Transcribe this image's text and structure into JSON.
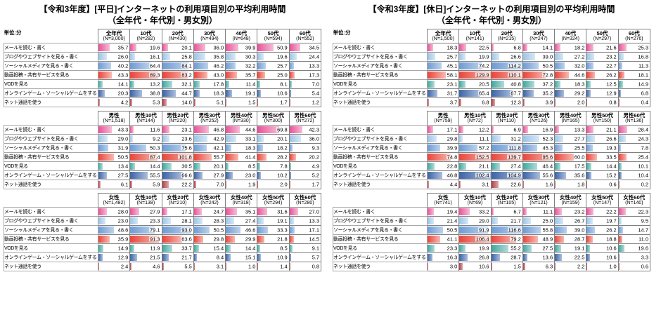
{
  "chart_data": {
    "type": "table",
    "unit_label": "単位:分",
    "bar_full_scale": 100,
    "categories": [
      {
        "label": "メールを読む・書く",
        "color": "#e85298",
        "color_light": "#f7bcd6"
      },
      {
        "label": "ブログやウェブサイトを見る・書く",
        "color": "#9dc3e6",
        "color_light": "#d6e8f7"
      },
      {
        "label": "ソーシャルメディアを見る・書く",
        "color": "#6f9bd2",
        "color_light": "#bcd2ec"
      },
      {
        "label": "動画投稿・共有サービスを見る",
        "color": "#e8453c",
        "color_light": "#f9b9b0"
      },
      {
        "label": "VODを見る",
        "color": "#43a6a0",
        "color_light": "#b0dcd8"
      },
      {
        "label": "オンラインゲーム・ソーシャルゲームをする",
        "color": "#3c64a8",
        "color_light": "#aabede"
      },
      {
        "label": "ネット通話を使う",
        "color": "#b04048",
        "color_light": "#ddaaae"
      }
    ],
    "tables": [
      {
        "title": "【令和3年度】[平日]インターネットの利用項目別の平均利用時間",
        "subtitle": "（全年代・年代別・男女別）",
        "groups": [
          {
            "columns": [
              {
                "label": "全年代",
                "n": "(N=3,000)"
              },
              {
                "label": "10代",
                "n": "(N=282)"
              },
              {
                "label": "20代",
                "n": "(N=430)"
              },
              {
                "label": "30代",
                "n": "(N=494)"
              },
              {
                "label": "40代",
                "n": "(N=648)"
              },
              {
                "label": "50代",
                "n": "(N=594)"
              },
              {
                "label": "60代",
                "n": "(N=552)"
              }
            ],
            "values": [
              [
                35.7,
                19.6,
                20.1,
                36.0,
                39.9,
                50.9,
                34.5
              ],
              [
                26.0,
                16.1,
                25.8,
                35.8,
                30.3,
                19.6,
                24.4
              ],
              [
                40.2,
                64.4,
                84.1,
                46.2,
                32.2,
                25.7,
                13.3
              ],
              [
                43.3,
                89.3,
                83.2,
                43.0,
                35.7,
                25.0,
                17.3
              ],
              [
                14.1,
                13.2,
                32.1,
                17.8,
                11.4,
                8.1,
                7.0
              ],
              [
                20.3,
                38.8,
                44.7,
                18.3,
                19.1,
                10.6,
                5.4
              ],
              [
                4.2,
                5.3,
                14.0,
                5.1,
                1.5,
                1.7,
                1.2
              ]
            ]
          },
          {
            "columns": [
              {
                "label": "男性",
                "n": "(N=1,518)"
              },
              {
                "label": "男性10代",
                "n": "(N=144)"
              },
              {
                "label": "男性20代",
                "n": "(N=220)"
              },
              {
                "label": "男性30代",
                "n": "(N=252)"
              },
              {
                "label": "男性40代",
                "n": "(N=330)"
              },
              {
                "label": "男性50代",
                "n": "(N=300)"
              },
              {
                "label": "男性60代",
                "n": "(N=272)"
              }
            ],
            "values": [
              [
                43.3,
                11.6,
                23.1,
                46.8,
                44.6,
                69.8,
                42.3
              ],
              [
                29.0,
                9.2,
                23.6,
                42.9,
                33.1,
                20.1,
                36.0
              ],
              [
                31.9,
                50.3,
                75.6,
                42.1,
                18.3,
                18.2,
                9.3
              ],
              [
                50.5,
                87.4,
                101.8,
                55.7,
                41.4,
                28.2,
                20.2
              ],
              [
                13.4,
                14.4,
                30.5,
                20.1,
                8.5,
                7.8,
                4.9
              ],
              [
                27.5,
                55.5,
                66.6,
                27.9,
                23.0,
                10.2,
                5.2
              ],
              [
                6.1,
                5.9,
                22.2,
                7.0,
                1.9,
                2.0,
                1.7
              ]
            ]
          },
          {
            "columns": [
              {
                "label": "女性",
                "n": "(N=1,482)"
              },
              {
                "label": "女性10代",
                "n": "(N=138)"
              },
              {
                "label": "女性20代",
                "n": "(N=210)"
              },
              {
                "label": "女性30代",
                "n": "(N=242)"
              },
              {
                "label": "女性40代",
                "n": "(N=318)"
              },
              {
                "label": "女性50代",
                "n": "(N=294)"
              },
              {
                "label": "女性60代",
                "n": "(N=280)"
              }
            ],
            "values": [
              [
                28.0,
                27.9,
                17.1,
                24.7,
                35.1,
                31.6,
                27.0
              ],
              [
                23.0,
                23.3,
                28.1,
                28.3,
                27.4,
                19.1,
                13.3
              ],
              [
                48.6,
                79.1,
                93.0,
                50.5,
                46.6,
                33.3,
                17.1
              ],
              [
                35.9,
                91.3,
                63.6,
                29.8,
                29.9,
                21.8,
                14.5
              ],
              [
                14.9,
                11.9,
                33.7,
                15.4,
                14.4,
                8.5,
                9.1
              ],
              [
                12.9,
                21.5,
                21.7,
                8.4,
                15.1,
                10.9,
                5.7
              ],
              [
                2.4,
                4.6,
                5.5,
                3.1,
                1.0,
                1.4,
                0.8
              ]
            ]
          }
        ]
      },
      {
        "title": "【令和3年度】[休日]インターネットの利用項目別の平均利用時間",
        "subtitle": "（全年代・年代別・男女別）",
        "groups": [
          {
            "columns": [
              {
                "label": "全年代",
                "n": "(N=1,500)"
              },
              {
                "label": "10代",
                "n": "(N=141)"
              },
              {
                "label": "20代",
                "n": "(N=215)"
              },
              {
                "label": "30代",
                "n": "(N=247)"
              },
              {
                "label": "40代",
                "n": "(N=324)"
              },
              {
                "label": "50代",
                "n": "(N=297)"
              },
              {
                "label": "60代",
                "n": "(N=276)"
              }
            ],
            "values": [
              [
                18.3,
                22.5,
                6.8,
                14.1,
                18.2,
                21.6,
                25.3
              ],
              [
                25.7,
                19.9,
                26.6,
                39.0,
                27.2,
                23.2,
                16.8
              ],
              [
                45.1,
                74.2,
                114.2,
                50.5,
                32.0,
                22.7,
                11.3
              ],
              [
                58.1,
                129.9,
                110.1,
                72.8,
                44.6,
                26.2,
                18.1
              ],
              [
                23.1,
                20.5,
                40.8,
                37.2,
                18.3,
                12.5,
                14.9
              ],
              [
                31.7,
                65.4,
                67.7,
                35.2,
                29.2,
                12.9,
                6.8
              ],
              [
                3.7,
                6.8,
                12.3,
                3.9,
                2.0,
                0.8,
                0.4
              ]
            ]
          },
          {
            "columns": [
              {
                "label": "男性",
                "n": "(N=759)"
              },
              {
                "label": "男性10代",
                "n": "(N=72)"
              },
              {
                "label": "男性20代",
                "n": "(N=110)"
              },
              {
                "label": "男性30代",
                "n": "(N=126)"
              },
              {
                "label": "男性40代",
                "n": "(N=165)"
              },
              {
                "label": "男性50代",
                "n": "(N=150)"
              },
              {
                "label": "男性60代",
                "n": "(N=136)"
              }
            ],
            "values": [
              [
                17.1,
                12.2,
                6.9,
                16.9,
                13.3,
                21.1,
                28.4
              ],
              [
                29.8,
                11.1,
                31.2,
                52.3,
                27.7,
                26.6,
                24.3
              ],
              [
                39.9,
                57.2,
                111.8,
                45.3,
                25.5,
                19.3,
                7.8
              ],
              [
                74.8,
                152.5,
                139.7,
                95.6,
                60.0,
                33.5,
                25.4
              ],
              [
                22.8,
                21.1,
                27.4,
                46.4,
                17.5,
                14.4,
                10.1
              ],
              [
                46.8,
                102.4,
                104.9,
                55.6,
                35.6,
                15.2,
                10.4
              ],
              [
                4.4,
                3.1,
                22.6,
                1.6,
                1.8,
                0.6,
                0.2
              ]
            ]
          },
          {
            "columns": [
              {
                "label": "女性",
                "n": "(N=741)"
              },
              {
                "label": "女性10代",
                "n": "(N=69)"
              },
              {
                "label": "女性20代",
                "n": "(N=105)"
              },
              {
                "label": "女性30代",
                "n": "(N=121)"
              },
              {
                "label": "女性40代",
                "n": "(N=159)"
              },
              {
                "label": "女性50代",
                "n": "(N=147)"
              },
              {
                "label": "女性60代",
                "n": "(N=140)"
              }
            ],
            "values": [
              [
                19.4,
                33.2,
                6.7,
                11.1,
                23.2,
                22.2,
                22.3
              ],
              [
                21.4,
                29.0,
                21.7,
                25.0,
                26.7,
                19.7,
                9.5
              ],
              [
                50.5,
                91.9,
                116.6,
                55.8,
                39.0,
                26.2,
                14.7
              ],
              [
                41.1,
                106.4,
                79.2,
                48.9,
                28.7,
                18.8,
                11.0
              ],
              [
                23.3,
                19.9,
                55.2,
                27.5,
                19.1,
                10.6,
                19.6
              ],
              [
                16.3,
                26.8,
                28.7,
                13.6,
                22.5,
                10.6,
                3.3
              ],
              [
                3.0,
                10.6,
                1.5,
                6.3,
                2.2,
                1.0,
                0.6
              ]
            ]
          }
        ]
      }
    ]
  }
}
